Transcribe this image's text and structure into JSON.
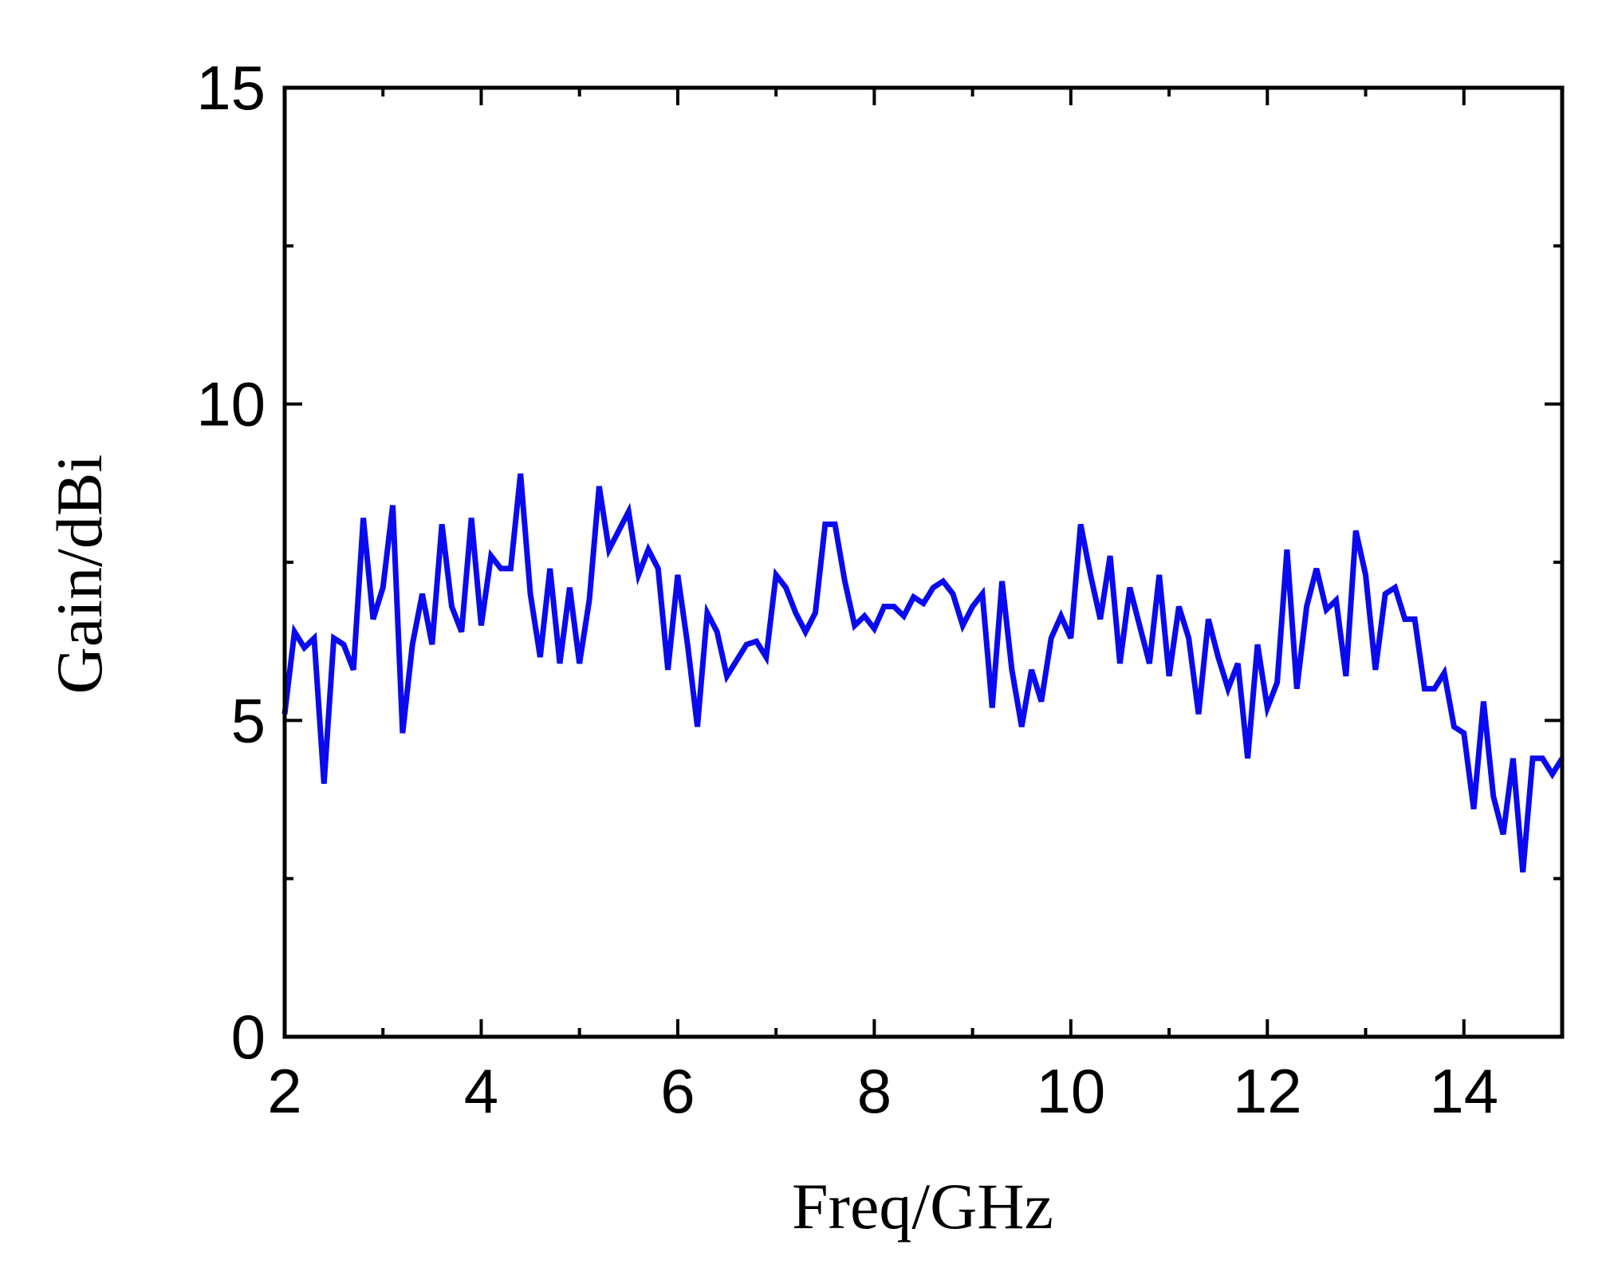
{
  "chart_data": {
    "type": "line",
    "x_label": "Freq/GHz",
    "y_label": "Gain/dBi",
    "x": [
      2.0,
      2.1,
      2.2,
      2.3,
      2.4,
      2.5,
      2.6,
      2.7,
      2.8,
      2.9,
      3.0,
      3.1,
      3.2,
      3.3,
      3.4,
      3.5,
      3.6,
      3.7,
      3.8,
      3.9,
      4.0,
      4.1,
      4.2,
      4.3,
      4.4,
      4.5,
      4.6,
      4.7,
      4.8,
      4.9,
      5.0,
      5.1,
      5.2,
      5.3,
      5.4,
      5.5,
      5.6,
      5.7,
      5.8,
      5.9,
      6.0,
      6.1,
      6.2,
      6.3,
      6.4,
      6.5,
      6.6,
      6.7,
      6.8,
      6.9,
      7.0,
      7.1,
      7.2,
      7.3,
      7.4,
      7.5,
      7.6,
      7.7,
      7.8,
      7.9,
      8.0,
      8.1,
      8.2,
      8.3,
      8.4,
      8.5,
      8.6,
      8.7,
      8.8,
      8.9,
      9.0,
      9.1,
      9.2,
      9.3,
      9.4,
      9.5,
      9.6,
      9.7,
      9.8,
      9.9,
      10.0,
      10.1,
      10.2,
      10.3,
      10.4,
      10.5,
      10.6,
      10.7,
      10.8,
      10.9,
      11.0,
      11.1,
      11.2,
      11.3,
      11.4,
      11.5,
      11.6,
      11.7,
      11.8,
      11.9,
      12.0,
      12.1,
      12.2,
      12.3,
      12.4,
      12.5,
      12.6,
      12.7,
      12.8,
      12.9,
      13.0,
      13.1,
      13.2,
      13.3,
      13.4,
      13.5,
      13.6,
      13.7,
      13.8,
      13.9,
      14.0,
      14.1,
      14.2,
      14.3,
      14.4,
      14.5,
      14.6,
      14.7,
      14.8,
      14.9,
      15.0
    ],
    "series": [
      {
        "color": "#0a0af0",
        "values": [
          5.1,
          6.4,
          6.15,
          6.3,
          4.0,
          6.3,
          6.2,
          5.8,
          8.2,
          6.6,
          7.1,
          8.4,
          4.8,
          6.2,
          7.0,
          6.2,
          8.1,
          6.8,
          6.4,
          8.2,
          6.5,
          7.6,
          7.4,
          7.4,
          8.9,
          7.0,
          6.0,
          7.4,
          5.9,
          7.1,
          5.9,
          6.9,
          8.7,
          7.7,
          8.0,
          8.3,
          7.3,
          7.7,
          7.4,
          5.8,
          7.3,
          6.2,
          4.9,
          6.7,
          6.4,
          5.7,
          5.95,
          6.2,
          6.25,
          6.0,
          7.3,
          7.1,
          6.7,
          6.4,
          6.7,
          8.1,
          8.1,
          7.2,
          6.5,
          6.65,
          6.45,
          6.8,
          6.8,
          6.65,
          6.95,
          6.85,
          7.1,
          7.2,
          7.0,
          6.5,
          6.8,
          7.0,
          5.2,
          7.2,
          5.8,
          4.9,
          5.8,
          5.3,
          6.3,
          6.65,
          6.3,
          8.1,
          7.3,
          6.6,
          7.6,
          5.9,
          7.1,
          6.5,
          5.9,
          7.3,
          5.7,
          6.8,
          6.3,
          5.1,
          6.6,
          6.0,
          5.5,
          5.9,
          4.4,
          6.2,
          5.2,
          5.6,
          7.7,
          5.5,
          6.8,
          7.4,
          6.75,
          6.9,
          5.7,
          8.0,
          7.3,
          5.8,
          7.0,
          7.1,
          6.6,
          6.6,
          5.5,
          5.5,
          5.75,
          4.9,
          4.8,
          3.6,
          5.3,
          3.8,
          3.2,
          4.4,
          2.6,
          4.4,
          4.4,
          4.15,
          4.4
        ]
      }
    ],
    "xlim": [
      2,
      15
    ],
    "ylim": [
      0,
      15
    ],
    "xticks": [
      2,
      4,
      6,
      8,
      10,
      12,
      14
    ],
    "yticks": [
      0,
      5,
      10,
      15
    ]
  }
}
